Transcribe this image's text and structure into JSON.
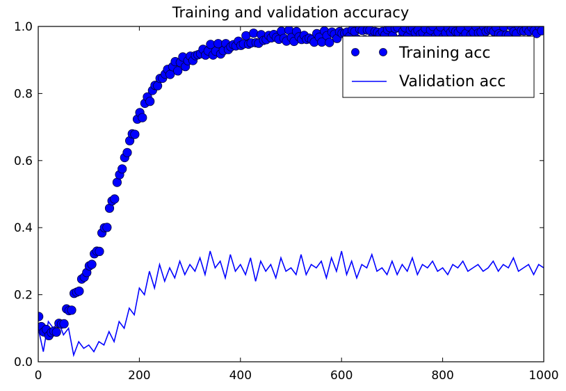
{
  "chart_data": {
    "type": "line",
    "title": "Training and validation accuracy",
    "xlabel": "",
    "ylabel": "",
    "xlim": [
      0,
      1000
    ],
    "ylim": [
      0.0,
      1.0
    ],
    "x_ticks": [
      "0",
      "200",
      "400",
      "600",
      "800",
      "1000"
    ],
    "y_ticks": [
      "0.0",
      "0.2",
      "0.4",
      "0.6",
      "0.8",
      "1.0"
    ],
    "grid": false,
    "legend_position": "upper-right",
    "colors": {
      "series": "#0000ff",
      "marker_edge": "#000033"
    },
    "series": [
      {
        "name": "Training acc",
        "style": "markers",
        "x": [
          0,
          20,
          40,
          60,
          80,
          100,
          120,
          140,
          160,
          180,
          200,
          220,
          240,
          260,
          280,
          300,
          320,
          340,
          360,
          380,
          400,
          420,
          440,
          460,
          480,
          500,
          520,
          540,
          560,
          580,
          600,
          620,
          640,
          660,
          680,
          700,
          720,
          740,
          760,
          780,
          800,
          820,
          840,
          860,
          880,
          900,
          920,
          940,
          960,
          980,
          1000
        ],
        "values": [
          0.12,
          0.08,
          0.1,
          0.15,
          0.22,
          0.28,
          0.34,
          0.44,
          0.55,
          0.65,
          0.73,
          0.79,
          0.84,
          0.87,
          0.89,
          0.9,
          0.92,
          0.93,
          0.93,
          0.94,
          0.95,
          0.96,
          0.96,
          0.97,
          0.97,
          0.97,
          0.97,
          0.96,
          0.97,
          0.97,
          0.98,
          0.98,
          0.98,
          0.98,
          0.98,
          0.99,
          0.98,
          0.99,
          0.98,
          0.99,
          0.98,
          0.99,
          0.98,
          0.99,
          0.99,
          0.99,
          0.98,
          0.99,
          0.99,
          0.99,
          0.99
        ]
      },
      {
        "name": "Validation acc",
        "style": "line",
        "x": [
          0,
          10,
          20,
          30,
          40,
          50,
          60,
          70,
          80,
          90,
          100,
          110,
          120,
          130,
          140,
          150,
          160,
          170,
          180,
          190,
          200,
          210,
          220,
          230,
          240,
          250,
          260,
          270,
          280,
          290,
          300,
          310,
          320,
          330,
          340,
          350,
          360,
          370,
          380,
          390,
          400,
          410,
          420,
          430,
          440,
          450,
          460,
          470,
          480,
          490,
          500,
          510,
          520,
          530,
          540,
          550,
          560,
          570,
          580,
          590,
          600,
          610,
          620,
          630,
          640,
          650,
          660,
          670,
          680,
          690,
          700,
          710,
          720,
          730,
          740,
          750,
          760,
          770,
          780,
          790,
          800,
          810,
          820,
          830,
          840,
          850,
          860,
          870,
          880,
          890,
          900,
          910,
          920,
          930,
          940,
          950,
          960,
          970,
          980,
          990,
          1000
        ],
        "values": [
          0.1,
          0.03,
          0.12,
          0.1,
          0.12,
          0.08,
          0.1,
          0.02,
          0.06,
          0.04,
          0.05,
          0.03,
          0.06,
          0.05,
          0.09,
          0.06,
          0.12,
          0.1,
          0.16,
          0.14,
          0.22,
          0.2,
          0.27,
          0.22,
          0.29,
          0.24,
          0.28,
          0.25,
          0.3,
          0.26,
          0.29,
          0.27,
          0.31,
          0.26,
          0.33,
          0.28,
          0.3,
          0.25,
          0.32,
          0.27,
          0.29,
          0.26,
          0.31,
          0.24,
          0.3,
          0.27,
          0.29,
          0.25,
          0.31,
          0.27,
          0.28,
          0.26,
          0.32,
          0.26,
          0.29,
          0.28,
          0.3,
          0.25,
          0.31,
          0.27,
          0.33,
          0.26,
          0.3,
          0.25,
          0.29,
          0.28,
          0.32,
          0.27,
          0.28,
          0.26,
          0.3,
          0.26,
          0.29,
          0.27,
          0.31,
          0.26,
          0.29,
          0.28,
          0.3,
          0.27,
          0.28,
          0.26,
          0.29,
          0.28,
          0.3,
          0.27,
          0.28,
          0.29,
          0.27,
          0.28,
          0.3,
          0.27,
          0.29,
          0.28,
          0.31,
          0.27,
          0.28,
          0.29,
          0.26,
          0.29,
          0.28
        ]
      }
    ]
  }
}
